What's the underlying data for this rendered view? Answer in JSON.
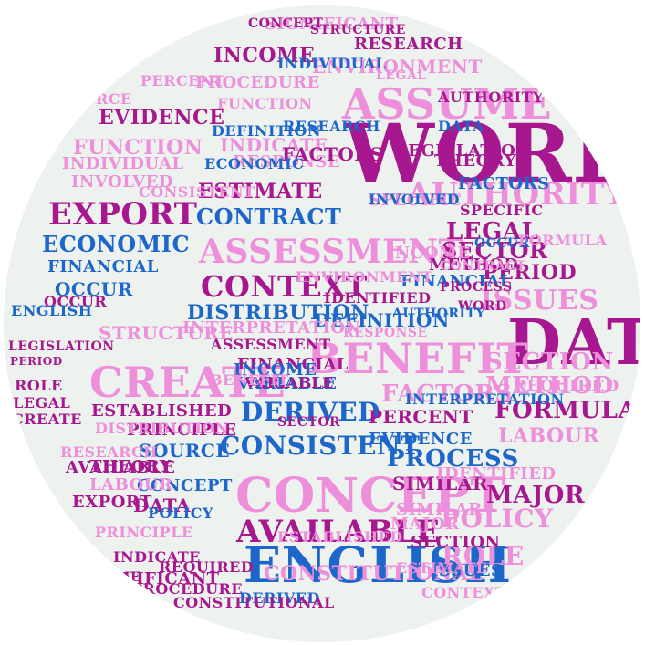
{
  "palette": {
    "background": "#ffffff",
    "disc": "#eef2ee",
    "magenta": "#a7178f",
    "blue": "#1c67c9",
    "pink": "#ee8fdc",
    "light_pink": "#f6b9ea"
  },
  "words": [
    {
      "text": "WORD",
      "color": "magenta"
    },
    {
      "text": "DATA",
      "color": "magenta"
    },
    {
      "text": "ENGLISH",
      "color": "blue"
    },
    {
      "text": "CONCEPT",
      "color": "pink"
    },
    {
      "text": "ASSUME",
      "color": "pink"
    },
    {
      "text": "BENEFIT",
      "color": "pink"
    },
    {
      "text": "CREATE",
      "color": "pink"
    },
    {
      "text": "ASSESSMENT",
      "color": "pink"
    },
    {
      "text": "AUTHORITY",
      "color": "pink"
    },
    {
      "text": "AVAILABLE",
      "color": "magenta"
    },
    {
      "text": "EXPORT",
      "color": "magenta"
    },
    {
      "text": "CONTEXT",
      "color": "magenta"
    },
    {
      "text": "CONSISTENT",
      "color": "blue"
    },
    {
      "text": "DERIVED",
      "color": "blue"
    },
    {
      "text": "CONTRACT",
      "color": "blue"
    },
    {
      "text": "ECONOMIC",
      "color": "blue"
    },
    {
      "text": "EVIDENCE",
      "color": "magenta"
    },
    {
      "text": "INCOME",
      "color": "magenta"
    },
    {
      "text": "FUNCTION",
      "color": "pink"
    },
    {
      "text": "ESTIMATE",
      "color": "magenta"
    },
    {
      "text": "INDIVIDUAL",
      "color": "pink"
    },
    {
      "text": "INDICATE",
      "color": "pink"
    },
    {
      "text": "DISTRIBUTION",
      "color": "blue"
    },
    {
      "text": "DEFINITION",
      "color": "blue"
    },
    {
      "text": "IDENTIFIED",
      "color": "magenta"
    },
    {
      "text": "LEGAL",
      "color": "magenta"
    },
    {
      "text": "SECTOR",
      "color": "magenta"
    },
    {
      "text": "PERIOD",
      "color": "magenta"
    },
    {
      "text": "ISSUES",
      "color": "pink"
    },
    {
      "text": "SECTION",
      "color": "pink"
    },
    {
      "text": "METHOD",
      "color": "pink"
    },
    {
      "text": "FORMULA",
      "color": "magenta"
    },
    {
      "text": "LABOUR",
      "color": "pink"
    },
    {
      "text": "MAJOR",
      "color": "magenta"
    },
    {
      "text": "POLICY",
      "color": "pink"
    },
    {
      "text": "ROLE",
      "color": "pink"
    },
    {
      "text": "SIMILAR",
      "color": "magenta"
    },
    {
      "text": "PROCESS",
      "color": "blue"
    },
    {
      "text": "FACTORS",
      "color": "pink"
    },
    {
      "text": "PERCENT",
      "color": "magenta"
    },
    {
      "text": "ESTABLISHED",
      "color": "magenta"
    },
    {
      "text": "PRINCIPLE",
      "color": "magenta"
    },
    {
      "text": "SOURCE",
      "color": "blue"
    },
    {
      "text": "THEORY",
      "color": "magenta"
    },
    {
      "text": "CONSTITUTIONAL",
      "color": "pink"
    },
    {
      "text": "FINANCIAL",
      "color": "magenta"
    },
    {
      "text": "OCCUR",
      "color": "blue"
    },
    {
      "text": "INTERPRETATION",
      "color": "pink"
    },
    {
      "text": "STRUCTURE",
      "color": "pink"
    },
    {
      "text": "LEGISLATION",
      "color": "magenta"
    },
    {
      "text": "RESEARCH",
      "color": "magenta"
    },
    {
      "text": "ENVIRONMENT",
      "color": "pink"
    },
    {
      "text": "SIGNIFICANT",
      "color": "pink"
    },
    {
      "text": "PROCEDURE",
      "color": "pink"
    },
    {
      "text": "RESPONSE",
      "color": "pink"
    },
    {
      "text": "INVOLVED",
      "color": "pink"
    },
    {
      "text": "SPECIFIC",
      "color": "pink"
    },
    {
      "text": "REQUIRED",
      "color": "pink"
    },
    {
      "text": "VARIABLE",
      "color": "blue"
    },
    {
      "text": "ASSESSMENT",
      "color": "magenta"
    },
    {
      "text": "INCOME",
      "color": "blue"
    },
    {
      "text": "FINANCIAL",
      "color": "blue"
    },
    {
      "text": "VARIABLE",
      "color": "magenta"
    },
    {
      "text": "FACTORS",
      "color": "blue"
    },
    {
      "text": "CONCEPT",
      "color": "blue"
    },
    {
      "text": "DATA",
      "color": "magenta"
    },
    {
      "text": "EXPORT",
      "color": "magenta"
    },
    {
      "text": "LABOUR",
      "color": "pink"
    },
    {
      "text": "AVAILABLE",
      "color": "magenta"
    },
    {
      "text": "CREATE",
      "color": "magenta"
    },
    {
      "text": "ROLE",
      "color": "magenta"
    },
    {
      "text": "LEGAL",
      "color": "magenta"
    },
    {
      "text": "OCCUR",
      "color": "magenta"
    },
    {
      "text": "PERIOD",
      "color": "magenta"
    },
    {
      "text": "ENGLISH",
      "color": "blue"
    },
    {
      "text": "FACTORS",
      "color": "magenta"
    },
    {
      "text": "LEGISLATION",
      "color": "magenta"
    },
    {
      "text": "FINANCIAL",
      "color": "blue"
    },
    {
      "text": "OCCUR",
      "color": "blue"
    },
    {
      "text": "WORD",
      "color": "magenta"
    },
    {
      "text": "ISSUES",
      "color": "blue"
    },
    {
      "text": "ESTIMATE",
      "color": "pink"
    },
    {
      "text": "POLICY",
      "color": "blue"
    },
    {
      "text": "SIMILAR",
      "color": "pink"
    },
    {
      "text": "INDICATE",
      "color": "magenta"
    },
    {
      "text": "MAJOR",
      "color": "pink"
    },
    {
      "text": "SECTION",
      "color": "magenta"
    },
    {
      "text": "EVIDENCE",
      "color": "blue"
    },
    {
      "text": "PERCENT",
      "color": "pink"
    },
    {
      "text": "BENEFIT",
      "color": "pink"
    },
    {
      "text": "ECONOMIC",
      "color": "blue"
    },
    {
      "text": "CONSISTENT",
      "color": "pink"
    },
    {
      "text": "CONTEXT",
      "color": "pink"
    },
    {
      "text": "METHOD",
      "color": "magenta"
    },
    {
      "text": "INVOLVED",
      "color": "blue"
    },
    {
      "text": "SPECIFIC",
      "color": "magenta"
    },
    {
      "text": "THEORY",
      "color": "magenta"
    },
    {
      "text": "AUTHORITY",
      "color": "blue"
    },
    {
      "text": "IDENTIFIED",
      "color": "pink"
    },
    {
      "text": "ENVIRONMENT",
      "color": "pink"
    },
    {
      "text": "FORMULA",
      "color": "pink"
    },
    {
      "text": "PROCESS",
      "color": "magenta"
    },
    {
      "text": "CONTRACT",
      "color": "pink"
    },
    {
      "text": "DEFINITION",
      "color": "blue"
    },
    {
      "text": "RESEARCH",
      "color": "blue"
    },
    {
      "text": "SECTOR",
      "color": "magenta"
    },
    {
      "text": "PRINCIPLE",
      "color": "pink"
    },
    {
      "text": "RESPONSE",
      "color": "pink"
    },
    {
      "text": "REQUIRED",
      "color": "magenta"
    },
    {
      "text": "PROCEDURE",
      "color": "magenta"
    },
    {
      "text": "DERIVED",
      "color": "blue"
    },
    {
      "text": "INDIVIDUAL",
      "color": "blue"
    },
    {
      "text": "FUNCTION",
      "color": "pink"
    },
    {
      "text": "SOURCE",
      "color": "pink"
    },
    {
      "text": "STRUCTURE",
      "color": "magenta"
    },
    {
      "text": "ESTABLISHED",
      "color": "pink"
    },
    {
      "text": "SIGNIFICANT",
      "color": "magenta"
    },
    {
      "text": "INTERPRETATION",
      "color": "blue"
    },
    {
      "text": "CONSTITUTIONAL",
      "color": "magenta"
    },
    {
      "text": "DISTRIBUTION",
      "color": "pink"
    },
    {
      "text": "ASSUME",
      "color": "magenta"
    },
    {
      "text": "INCOME",
      "color": "pink"
    },
    {
      "text": "CONCEPT",
      "color": "magenta"
    },
    {
      "text": "ROLE",
      "color": "blue"
    },
    {
      "text": "LEGAL",
      "color": "pink"
    },
    {
      "text": "DATA",
      "color": "blue"
    },
    {
      "text": "AUTHORITY",
      "color": "magenta"
    },
    {
      "text": "RESEARCH",
      "color": "pink"
    },
    {
      "text": "ENGLISH",
      "color": "pink"
    },
    {
      "text": "CREATE",
      "color": "blue"
    },
    {
      "text": "OCCUR",
      "color": "pink"
    }
  ]
}
